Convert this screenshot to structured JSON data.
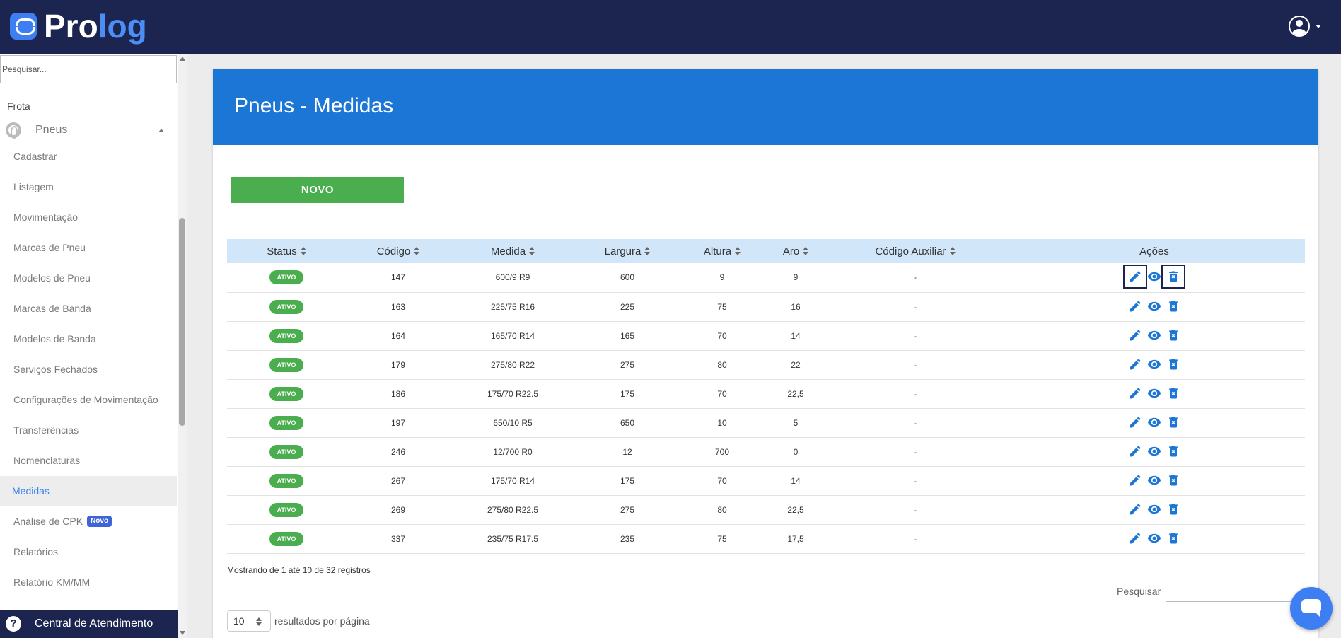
{
  "app": {
    "brand_pro": "Pro",
    "brand_log": "log"
  },
  "colors": {
    "topbar": "#1c2450",
    "header": "#1b76d6",
    "accent": "#3d80f0",
    "status_active": "#4aae4e",
    "action_icon": "#1b76d6"
  },
  "sidebar": {
    "search_placeholder": "Pesquisar...",
    "section": "Frota",
    "group": "Pneus",
    "items": [
      {
        "label": "Cadastrar"
      },
      {
        "label": "Listagem"
      },
      {
        "label": "Movimentação"
      },
      {
        "label": "Marcas de Pneu"
      },
      {
        "label": "Modelos de Pneu"
      },
      {
        "label": "Marcas de Banda"
      },
      {
        "label": "Modelos de Banda"
      },
      {
        "label": "Serviços Fechados"
      },
      {
        "label": "Configurações de Movimentação"
      },
      {
        "label": "Transferências"
      },
      {
        "label": "Nomenclaturas"
      },
      {
        "label": "Medidas",
        "active": true
      },
      {
        "label": "Análise de CPK",
        "badge": "Novo"
      },
      {
        "label": "Relatórios"
      },
      {
        "label": "Relatório KM/MM"
      }
    ],
    "help": "Central de Atendimento"
  },
  "page": {
    "title": "Pneus - Medidas",
    "new_button": "NOVO"
  },
  "table": {
    "headers": [
      "Status",
      "Código",
      "Medida",
      "Largura",
      "Altura",
      "Aro",
      "Código Auxiliar",
      "Ações"
    ],
    "rows": [
      {
        "status": "ATIVO",
        "codigo": "147",
        "medida": "600/9 R9",
        "largura": "600",
        "altura": "9",
        "aro": "9",
        "auxiliar": "-"
      },
      {
        "status": "ATIVO",
        "codigo": "163",
        "medida": "225/75 R16",
        "largura": "225",
        "altura": "75",
        "aro": "16",
        "auxiliar": "-"
      },
      {
        "status": "ATIVO",
        "codigo": "164",
        "medida": "165/70 R14",
        "largura": "165",
        "altura": "70",
        "aro": "14",
        "auxiliar": "-"
      },
      {
        "status": "ATIVO",
        "codigo": "179",
        "medida": "275/80 R22",
        "largura": "275",
        "altura": "80",
        "aro": "22",
        "auxiliar": "-"
      },
      {
        "status": "ATIVO",
        "codigo": "186",
        "medida": "175/70 R22.5",
        "largura": "175",
        "altura": "70",
        "aro": "22,5",
        "auxiliar": "-"
      },
      {
        "status": "ATIVO",
        "codigo": "197",
        "medida": "650/10 R5",
        "largura": "650",
        "altura": "10",
        "aro": "5",
        "auxiliar": "-"
      },
      {
        "status": "ATIVO",
        "codigo": "246",
        "medida": "12/700 R0",
        "largura": "12",
        "altura": "700",
        "aro": "0",
        "auxiliar": "-"
      },
      {
        "status": "ATIVO",
        "codigo": "267",
        "medida": "175/70 R14",
        "largura": "175",
        "altura": "70",
        "aro": "14",
        "auxiliar": "-"
      },
      {
        "status": "ATIVO",
        "codigo": "269",
        "medida": "275/80 R22.5",
        "largura": "275",
        "altura": "80",
        "aro": "22,5",
        "auxiliar": "-"
      },
      {
        "status": "ATIVO",
        "codigo": "337",
        "medida": "235/75 R17.5",
        "largura": "235",
        "altura": "75",
        "aro": "17,5",
        "auxiliar": "-"
      }
    ],
    "action_icons": [
      "pencil-icon",
      "eye-icon",
      "trash-icon"
    ]
  },
  "footer": {
    "info": "Mostrando de 1 até 10 de 32 registros",
    "search_label": "Pesquisar",
    "per_page_value": "10",
    "per_page_label": "resultados por página"
  }
}
